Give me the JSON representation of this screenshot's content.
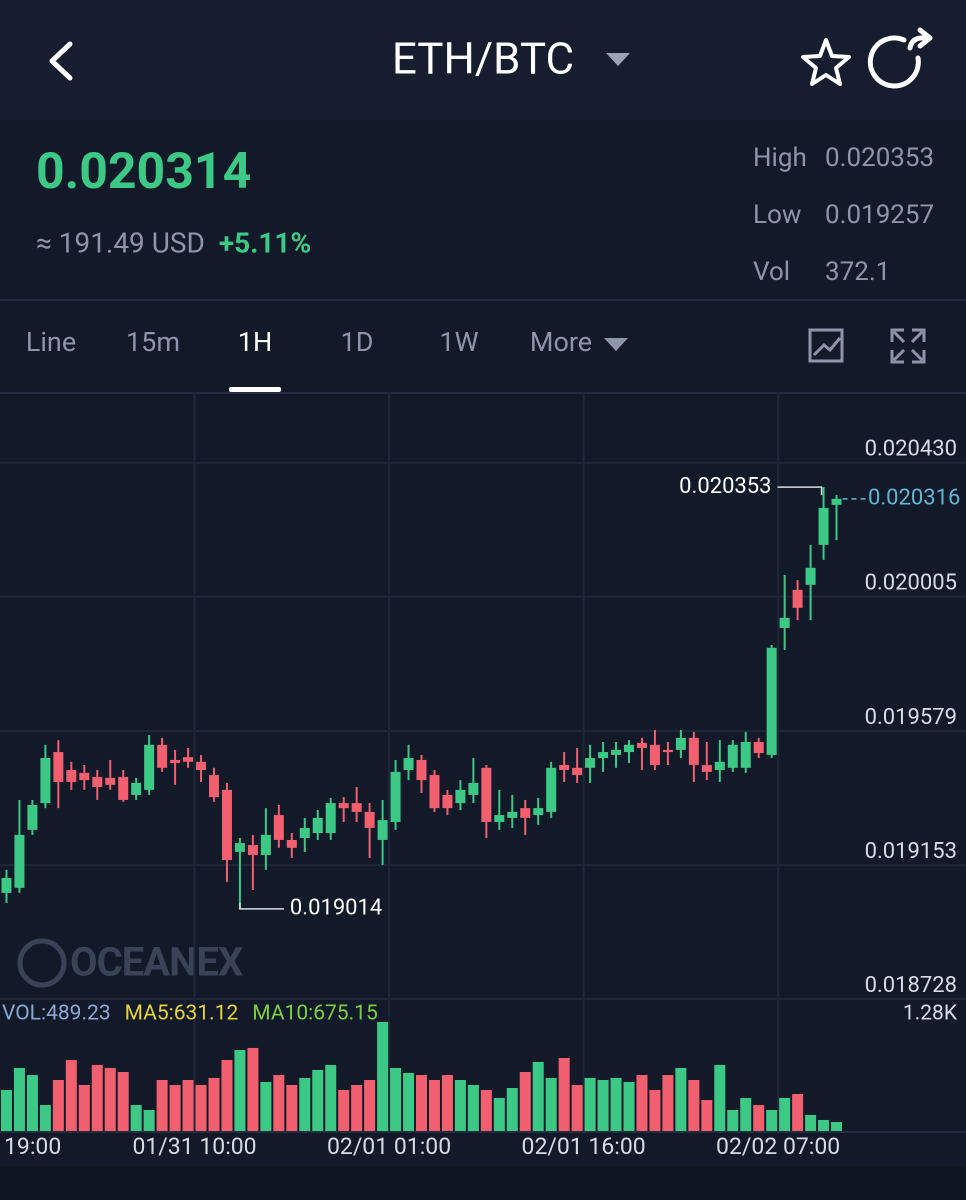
{
  "header": {
    "title": "ETH/BTC"
  },
  "ticker": {
    "price": "0.020314",
    "usd": "≈ 191.49 USD",
    "change": "+5.11%",
    "stats": [
      {
        "label": "High",
        "value": "0.020353"
      },
      {
        "label": "Low",
        "value": "0.019257"
      },
      {
        "label": "Vol",
        "value": "372.1"
      }
    ]
  },
  "tabs": {
    "items": [
      "Line",
      "15m",
      "1H",
      "1D",
      "1W",
      "More"
    ],
    "active": 2
  },
  "chart_data": {
    "type": "candlestick",
    "watermark": "OCEANEX",
    "up_color": "#3cc985",
    "down_color": "#f25f6e",
    "grid": true,
    "xlim": [
      -0.5,
      64.5
    ],
    "xticks": [
      {
        "value": -0.5,
        "label": "19:00"
      },
      {
        "value": 14.5,
        "label": "01/31 10:00"
      },
      {
        "value": 29.5,
        "label": "02/01 01:00"
      },
      {
        "value": 44.5,
        "label": "02/01 16:00"
      },
      {
        "value": 59.5,
        "label": "02/02 07:00"
      }
    ],
    "ylim": [
      0.018728,
      0.020652
    ],
    "yticks": [
      {
        "value": 0.02043,
        "label": "0.020430"
      },
      0.020005,
      0.019579,
      0.019153,
      0.018728
    ],
    "open": [
      0.019065,
      0.019081,
      0.019265,
      0.01935,
      0.019512,
      0.019455,
      0.019446,
      0.019433,
      0.01943,
      0.019433,
      0.019376,
      0.019392,
      0.019535,
      0.019487,
      0.019496,
      0.019481,
      0.019439,
      0.019392,
      0.019195,
      0.019217,
      0.019185,
      0.019312,
      0.019233,
      0.019239,
      0.019255,
      0.019255,
      0.01935,
      0.01935,
      0.019322,
      0.019233,
      0.01929,
      0.019455,
      0.019487,
      0.019439,
      0.019376,
      0.01935,
      0.019376,
      0.019462,
      0.01929,
      0.019303,
      0.019334,
      0.019312,
      0.019322,
      0.019471,
      0.019462,
      0.019462,
      0.019493,
      0.019503,
      0.019512,
      0.019541,
      0.019535,
      0.019519,
      0.019519,
      0.019557,
      0.019471,
      0.019455,
      0.019462,
      0.019462,
      0.019544,
      0.019503,
      0.019906,
      0.020027,
      0.020043,
      0.02017,
      0.020297
    ],
    "high": [
      0.019138,
      0.01936,
      0.01936,
      0.019535,
      0.01955,
      0.019481,
      0.019471,
      0.019455,
      0.019487,
      0.019455,
      0.01943,
      0.019566,
      0.019557,
      0.019519,
      0.019525,
      0.019503,
      0.019462,
      0.019414,
      0.019239,
      0.019249,
      0.019334,
      0.019344,
      0.019255,
      0.019303,
      0.019328,
      0.019366,
      0.019369,
      0.019401,
      0.01935,
      0.01936,
      0.019487,
      0.019535,
      0.019503,
      0.019455,
      0.019392,
      0.019423,
      0.019493,
      0.019471,
      0.019392,
      0.019376,
      0.01936,
      0.019366,
      0.019481,
      0.019512,
      0.019525,
      0.019535,
      0.019544,
      0.019544,
      0.01955,
      0.019557,
      0.019582,
      0.019544,
      0.019582,
      0.019576,
      0.019544,
      0.01955,
      0.01955,
      0.019576,
      0.019557,
      0.019852,
      0.020074,
      0.020058,
      0.02017,
      0.020353,
      0.020328
    ],
    "low": [
      0.019033,
      0.019065,
      0.019249,
      0.019334,
      0.019334,
      0.019392,
      0.019392,
      0.01936,
      0.019392,
      0.019354,
      0.01936,
      0.019376,
      0.019449,
      0.019408,
      0.019462,
      0.019417,
      0.019354,
      0.0191,
      0.019014,
      0.019074,
      0.019138,
      0.019208,
      0.019176,
      0.019195,
      0.019233,
      0.019233,
      0.01929,
      0.01929,
      0.019176,
      0.019154,
      0.019265,
      0.019423,
      0.019382,
      0.019322,
      0.019312,
      0.019328,
      0.01935,
      0.019239,
      0.019265,
      0.019271,
      0.019249,
      0.019281,
      0.019303,
      0.019417,
      0.019414,
      0.019414,
      0.019449,
      0.019462,
      0.019477,
      0.019455,
      0.019455,
      0.019471,
      0.019493,
      0.019417,
      0.019423,
      0.019417,
      0.019449,
      0.019446,
      0.019493,
      0.019493,
      0.019836,
      0.019931,
      0.019931,
      0.020122,
      0.020185
    ],
    "close": [
      0.019112,
      0.019249,
      0.019344,
      0.019493,
      0.019417,
      0.019417,
      0.019423,
      0.019401,
      0.019408,
      0.01936,
      0.019414,
      0.019535,
      0.019462,
      0.019477,
      0.019481,
      0.019455,
      0.019369,
      0.019169,
      0.019223,
      0.019185,
      0.019249,
      0.019233,
      0.019208,
      0.019271,
      0.019303,
      0.01935,
      0.019334,
      0.019322,
      0.019271,
      0.019296,
      0.019449,
      0.019493,
      0.019423,
      0.019334,
      0.019334,
      0.019392,
      0.019414,
      0.01929,
      0.019312,
      0.019322,
      0.019303,
      0.019334,
      0.019462,
      0.019455,
      0.019439,
      0.019493,
      0.019512,
      0.019519,
      0.019535,
      0.019525,
      0.019471,
      0.019512,
      0.019557,
      0.019471,
      0.019449,
      0.019481,
      0.019535,
      0.019544,
      0.019509,
      0.019843,
      0.019938,
      0.01997,
      0.020097,
      0.020287,
      0.020316
    ],
    "volume": [
      489,
      745,
      663,
      314,
      605,
      838,
      547,
      780,
      745,
      698,
      314,
      256,
      605,
      547,
      605,
      547,
      629,
      838,
      954,
      978,
      582,
      663,
      547,
      629,
      722,
      780,
      489,
      547,
      605,
      1280,
      745,
      687,
      663,
      605,
      663,
      605,
      547,
      489,
      396,
      512,
      698,
      815,
      629,
      861,
      547,
      629,
      605,
      629,
      582,
      663,
      489,
      663,
      745,
      605,
      372,
      780,
      256,
      396,
      314,
      256,
      396,
      442,
      198,
      140,
      116
    ],
    "volume_ylim": [
      0,
      1280
    ],
    "volume_yticks": [
      {
        "value": 1280,
        "label": "1.28K"
      }
    ],
    "volume_legend": [
      {
        "text": "VOL:489.23",
        "color": "#8ea6d6"
      },
      {
        "text": "MA5:631.12",
        "color": "#e6d23a"
      },
      {
        "text": "MA10:675.15",
        "color": "#7ccf3e"
      }
    ]
  }
}
